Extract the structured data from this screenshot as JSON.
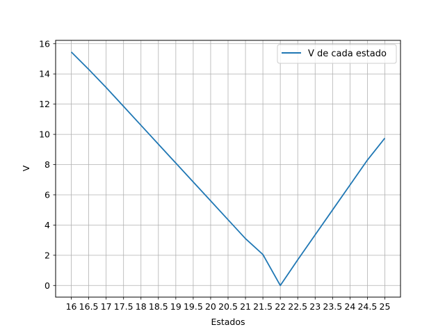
{
  "chart_data": {
    "type": "line",
    "title": "",
    "xlabel": "Estados",
    "ylabel": "V",
    "x": [
      16,
      16.5,
      17,
      17.5,
      18,
      18.5,
      19,
      19.5,
      20,
      20.5,
      21,
      21.5,
      22,
      22.5,
      23,
      23.5,
      24,
      24.5,
      25
    ],
    "series": [
      {
        "name": "V de cada estado",
        "color": "#1f77b4",
        "values": [
          15.45,
          14.3,
          13.1,
          11.85,
          10.6,
          9.35,
          8.1,
          6.85,
          5.6,
          4.35,
          3.1,
          2.05,
          0.0,
          1.7,
          3.35,
          5.0,
          6.65,
          8.3,
          9.75
        ]
      }
    ],
    "xticks": [
      "16",
      "16.5",
      "17",
      "17.5",
      "18",
      "18.5",
      "19",
      "19.5",
      "20",
      "20.5",
      "21",
      "21.5",
      "22",
      "22.5",
      "23",
      "23.5",
      "24",
      "24.5",
      "25"
    ],
    "highlight_tick": "22",
    "highlight_color": "#ff0000",
    "yticks": [
      0,
      2,
      4,
      6,
      8,
      10,
      12,
      14,
      16
    ],
    "xlim": [
      15.55,
      25.45
    ],
    "ylim": [
      -0.77,
      16.22
    ],
    "grid": true,
    "legend_position": "top-right"
  }
}
